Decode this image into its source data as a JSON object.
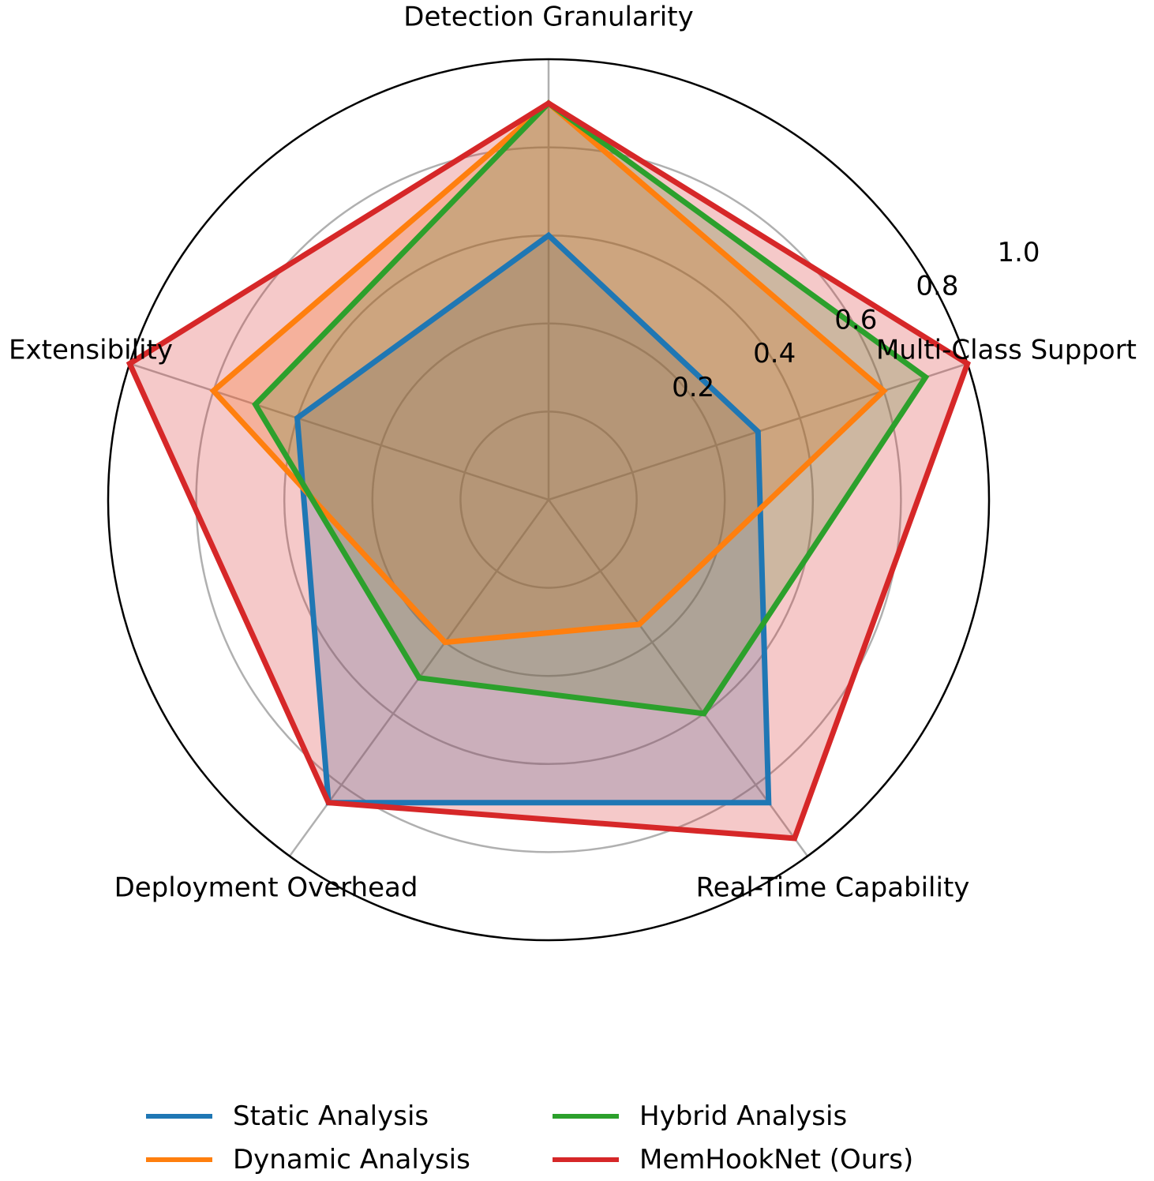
{
  "chart_data": {
    "type": "radar",
    "axes": [
      "Detection Granularity",
      "Multi-Class Support",
      "Real-Time Capability",
      "Deployment Overhead",
      "Extensibility"
    ],
    "rlim": [
      0,
      1.0
    ],
    "rticks": [
      "0.2",
      "0.4",
      "0.6",
      "0.8",
      "1.0"
    ],
    "rtick_values": [
      0.2,
      0.4,
      0.6,
      0.8,
      1.0
    ],
    "grid": true,
    "legend_position": "bottom-center",
    "series": [
      {
        "name": "Static Analysis",
        "color": "#1f77b4",
        "fill": "#1f77b4",
        "values": [
          0.6,
          0.5,
          0.85,
          0.85,
          0.6
        ]
      },
      {
        "name": "Dynamic Analysis",
        "color": "#ff7f0e",
        "fill": "#ff7f0e",
        "values": [
          0.9,
          0.8,
          0.35,
          0.4,
          0.8
        ]
      },
      {
        "name": "Hybrid Analysis",
        "color": "#2ca02c",
        "fill": "#2ca02c",
        "values": [
          0.9,
          0.9,
          0.6,
          0.5,
          0.7
        ]
      },
      {
        "name": "MemHookNet (Ours)",
        "color": "#d62728",
        "fill": "#d62728",
        "values": [
          0.9,
          1.0,
          0.95,
          0.85,
          1.0
        ]
      }
    ]
  }
}
